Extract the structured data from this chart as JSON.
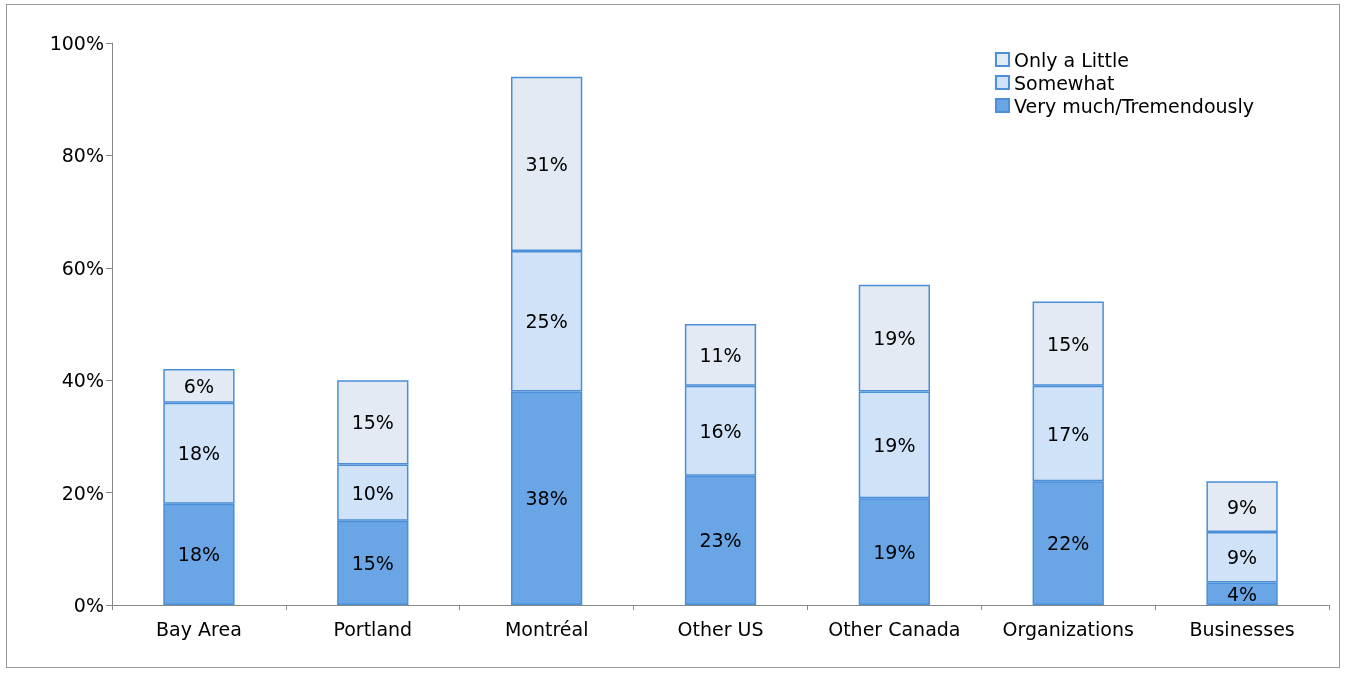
{
  "chart_data": {
    "type": "bar",
    "stacked": true,
    "categories": [
      "Bay Area",
      "Portland",
      "Montréal",
      "Other US",
      "Other Canada",
      "Organizations",
      "Businesses"
    ],
    "series": [
      {
        "name": "Very much/Tremendously",
        "color": "#6aa6e6",
        "values": [
          18,
          15,
          38,
          23,
          19,
          22,
          4
        ],
        "value_labels": [
          "18%",
          "15%",
          "38%",
          "23%",
          "19%",
          "22%",
          "4%"
        ]
      },
      {
        "name": "Somewhat",
        "color": "#cfe2f8",
        "values": [
          18,
          10,
          25,
          16,
          19,
          17,
          9
        ],
        "value_labels": [
          "18%",
          "10%",
          "25%",
          "16%",
          "19%",
          "17%",
          "9%"
        ]
      },
      {
        "name": "Only a Little",
        "color": "#e3eaf3",
        "values": [
          6,
          15,
          31,
          11,
          19,
          15,
          9
        ],
        "value_labels": [
          "6%",
          "15%",
          "31%",
          "11%",
          "19%",
          "15%",
          "9%"
        ]
      }
    ],
    "ylim": [
      0,
      100
    ],
    "yticks": [
      {
        "value": 0,
        "label": "0%"
      },
      {
        "value": 20,
        "label": "20%"
      },
      {
        "value": 40,
        "label": "40%"
      },
      {
        "value": 60,
        "label": "60%"
      },
      {
        "value": 80,
        "label": "80%"
      },
      {
        "value": 100,
        "label": "100%"
      }
    ],
    "grid": false,
    "legend": "top right"
  }
}
